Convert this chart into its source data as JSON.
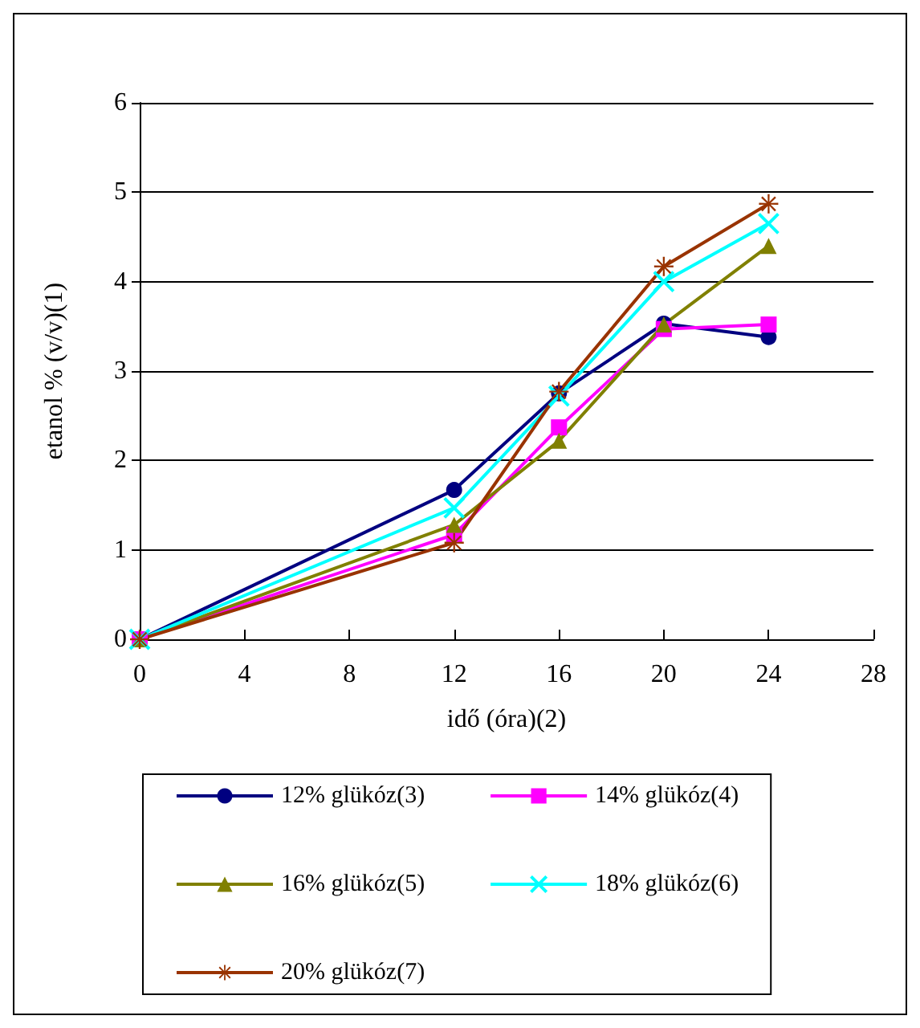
{
  "chart_data": {
    "type": "line",
    "xlabel": "idő (óra)(2)",
    "ylabel": "etanol % (v/v)(1)",
    "x": [
      0,
      12,
      16,
      20,
      24
    ],
    "xlim": [
      0,
      28
    ],
    "xticks": [
      0,
      4,
      8,
      12,
      16,
      20,
      24,
      28
    ],
    "ylim": [
      0,
      6
    ],
    "yticks": [
      0,
      1,
      2,
      3,
      4,
      5,
      6
    ],
    "grid": "y",
    "legend": "bottom",
    "line_style": "solid",
    "series": [
      {
        "name": "12% glükóz(3)",
        "color": "#000080",
        "marker": "circle",
        "values": [
          0,
          1.67,
          2.75,
          3.53,
          3.38
        ]
      },
      {
        "name": "14% glükóz(4)",
        "color": "#ff00ff",
        "marker": "square",
        "values": [
          0,
          1.17,
          2.37,
          3.47,
          3.52
        ]
      },
      {
        "name": "16% glükóz(5)",
        "color": "#808000",
        "marker": "triangle",
        "values": [
          0,
          1.28,
          2.22,
          3.52,
          4.4
        ]
      },
      {
        "name": "18% glükóz(6)",
        "color": "#00ffff",
        "marker": "cross",
        "values": [
          0,
          1.47,
          2.72,
          4.0,
          4.65
        ]
      },
      {
        "name": "20% glükóz(7)",
        "color": "#993300",
        "marker": "star",
        "values": [
          0,
          1.08,
          2.77,
          4.17,
          4.87
        ]
      }
    ]
  }
}
